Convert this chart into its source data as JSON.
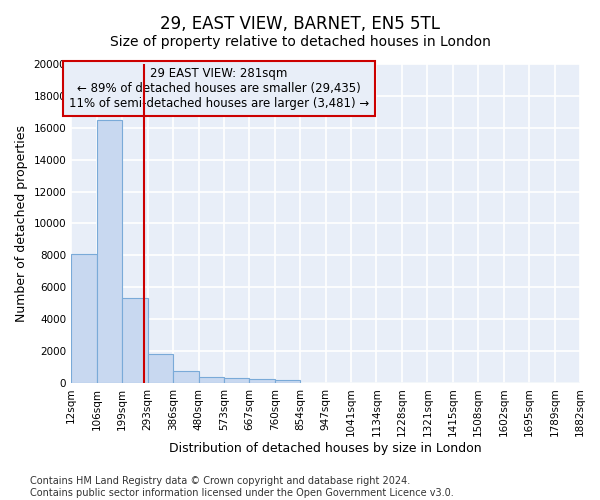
{
  "title": "29, EAST VIEW, BARNET, EN5 5TL",
  "subtitle": "Size of property relative to detached houses in London",
  "xlabel": "Distribution of detached houses by size in London",
  "ylabel": "Number of detached properties",
  "bin_edges": [
    12,
    106,
    199,
    293,
    386,
    480,
    573,
    667,
    760,
    854,
    947,
    1041,
    1134,
    1228,
    1321,
    1415,
    1508,
    1602,
    1695,
    1789,
    1882
  ],
  "bar_heights": [
    8100,
    16500,
    5300,
    1800,
    750,
    350,
    280,
    230,
    180,
    0,
    0,
    0,
    0,
    0,
    0,
    0,
    0,
    0,
    0,
    0
  ],
  "bar_color": "#c8d8f0",
  "bar_edge_color": "#7aaad8",
  "property_line_x": 281,
  "property_line_color": "#cc0000",
  "annotation_text": "29 EAST VIEW: 281sqm\n← 89% of detached houses are smaller (29,435)\n11% of semi-detached houses are larger (3,481) →",
  "annotation_box_color": "#cc0000",
  "ylim": [
    0,
    20000
  ],
  "yticks": [
    0,
    2000,
    4000,
    6000,
    8000,
    10000,
    12000,
    14000,
    16000,
    18000,
    20000
  ],
  "xtick_labels": [
    "12sqm",
    "106sqm",
    "199sqm",
    "293sqm",
    "386sqm",
    "480sqm",
    "573sqm",
    "667sqm",
    "760sqm",
    "854sqm",
    "947sqm",
    "1041sqm",
    "1134sqm",
    "1228sqm",
    "1321sqm",
    "1415sqm",
    "1508sqm",
    "1602sqm",
    "1695sqm",
    "1789sqm",
    "1882sqm"
  ],
  "footnote": "Contains HM Land Registry data © Crown copyright and database right 2024.\nContains public sector information licensed under the Open Government Licence v3.0.",
  "background_color": "#ffffff",
  "plot_bg_color": "#e8eef8",
  "grid_color": "#ffffff",
  "title_fontsize": 12,
  "subtitle_fontsize": 10,
  "axis_label_fontsize": 9,
  "tick_fontsize": 7.5,
  "annotation_fontsize": 8.5,
  "footnote_fontsize": 7
}
